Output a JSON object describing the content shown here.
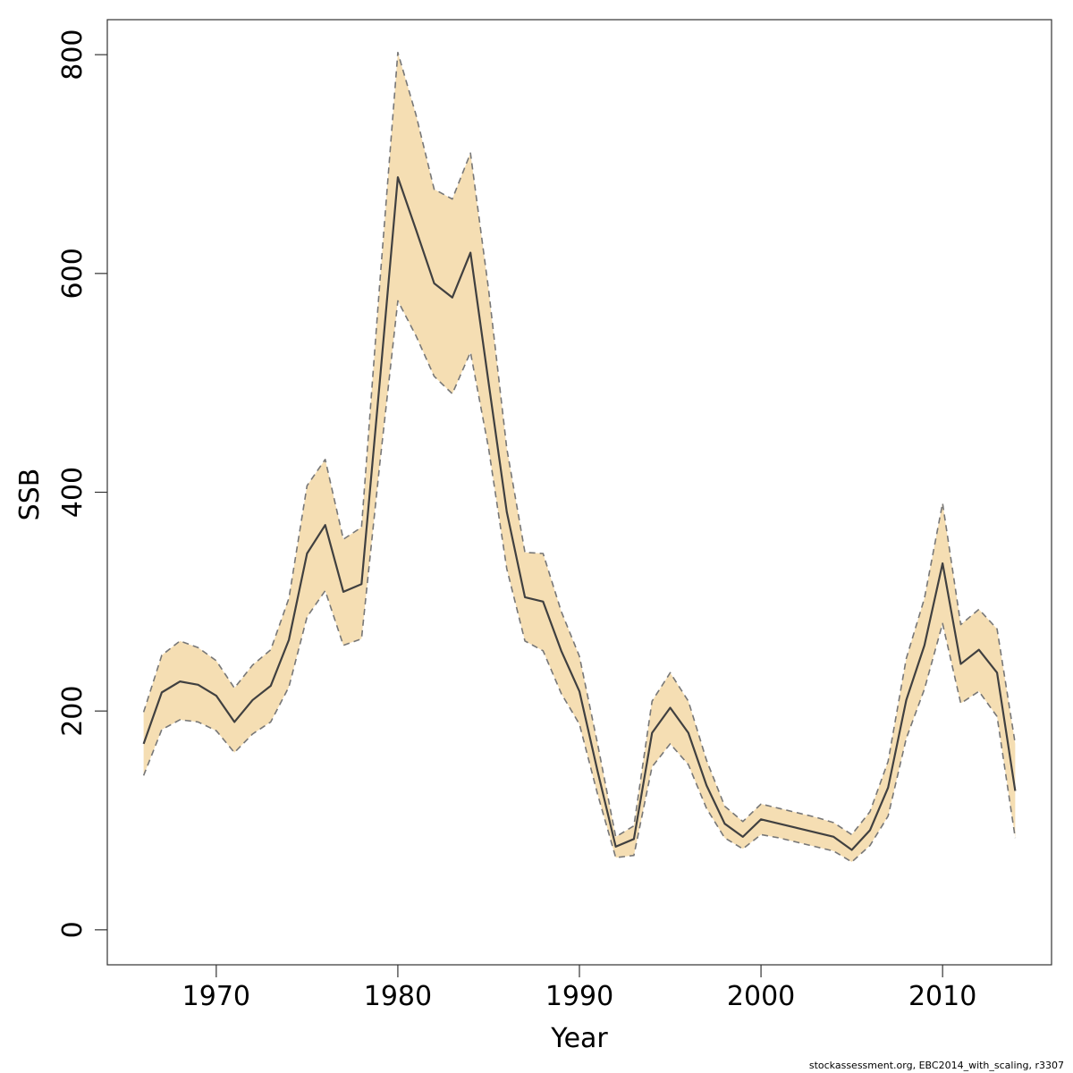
{
  "colors": {
    "band_fill": "#f5deb3",
    "ci_line": "#777777",
    "estimate_line": "#404040",
    "axis": "#333333"
  },
  "footer": "stockassessment.org, EBC2014_with_scaling, r3307",
  "chart_data": {
    "type": "line",
    "xlabel": "Year",
    "ylabel": "SSB",
    "xlim": [
      1964,
      2016
    ],
    "ylim": [
      -32,
      832
    ],
    "x_ticks": [
      1970,
      1980,
      1990,
      2000,
      2010
    ],
    "y_ticks": [
      0,
      200,
      400,
      600,
      800
    ],
    "grid": false,
    "x": [
      1966,
      1967,
      1968,
      1969,
      1970,
      1971,
      1972,
      1973,
      1974,
      1975,
      1976,
      1977,
      1978,
      1979,
      1980,
      1981,
      1982,
      1983,
      1984,
      1985,
      1986,
      1987,
      1988,
      1989,
      1990,
      1991,
      1992,
      1993,
      1994,
      1995,
      1996,
      1997,
      1998,
      1999,
      2000,
      2001,
      2002,
      2003,
      2004,
      2005,
      2006,
      2007,
      2008,
      2009,
      2010,
      2011,
      2012,
      2013,
      2014
    ],
    "series": [
      {
        "role": "estimate",
        "values": [
          170,
          217,
          227,
          224,
          214,
          190,
          210,
          223,
          265,
          344,
          370,
          309,
          316,
          500,
          688,
          640,
          591,
          578,
          619,
          500,
          382,
          304,
          300,
          255,
          218,
          145,
          76,
          83,
          180,
          203,
          180,
          132,
          97,
          85,
          101,
          97,
          93,
          89,
          85,
          73,
          91,
          130,
          210,
          260,
          335,
          243,
          256,
          235,
          127
        ]
      },
      {
        "role": "upper_ci",
        "values": [
          199,
          251,
          264,
          258,
          246,
          221,
          242,
          256,
          303,
          406,
          430,
          357,
          368,
          590,
          802,
          745,
          677,
          668,
          710,
          585,
          440,
          345,
          344,
          291,
          250,
          170,
          85,
          95,
          209,
          235,
          209,
          155,
          113,
          99,
          115,
          111,
          107,
          103,
          98,
          87,
          108,
          154,
          248,
          303,
          390,
          279,
          293,
          275,
          170
        ]
      },
      {
        "role": "lower_ci",
        "values": [
          141,
          183,
          192,
          190,
          182,
          162,
          179,
          190,
          222,
          286,
          310,
          260,
          266,
          425,
          575,
          543,
          506,
          490,
          528,
          440,
          330,
          264,
          255,
          216,
          188,
          124,
          66,
          68,
          149,
          170,
          151,
          111,
          84,
          74,
          87,
          84,
          80,
          76,
          72,
          62,
          77,
          104,
          175,
          220,
          280,
          207,
          218,
          195,
          84
        ]
      }
    ]
  }
}
